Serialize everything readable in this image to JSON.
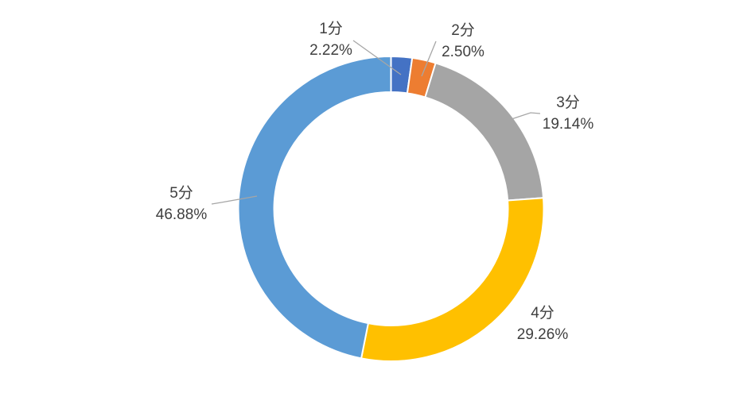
{
  "page": {
    "background_color": "#ffffff"
  },
  "chart_data": {
    "type": "pie",
    "subtype": "donut",
    "title": "",
    "categories": [
      "1分",
      "2分",
      "3分",
      "4分",
      "5分"
    ],
    "values": [
      2.22,
      2.5,
      19.14,
      29.26,
      46.88
    ],
    "unit": "%",
    "colors": [
      "#4472C4",
      "#ED7D31",
      "#A5A5A5",
      "#FFC000",
      "#5B9BD5"
    ],
    "labels": [
      {
        "name": "1分",
        "pct": "2.22%"
      },
      {
        "name": "2分",
        "pct": "2.50%"
      },
      {
        "name": "3分",
        "pct": "19.14%"
      },
      {
        "name": "4分",
        "pct": "29.26%"
      },
      {
        "name": "5分",
        "pct": "46.88%"
      }
    ],
    "start_angle_deg": 0,
    "direction": "clockwise",
    "hole_ratio": 0.765,
    "legend": "none",
    "grid": "off",
    "label_text_color": "#3f3f3f",
    "leader_line_color": "#A6A6A6",
    "segment_border_color": "#ffffff"
  }
}
